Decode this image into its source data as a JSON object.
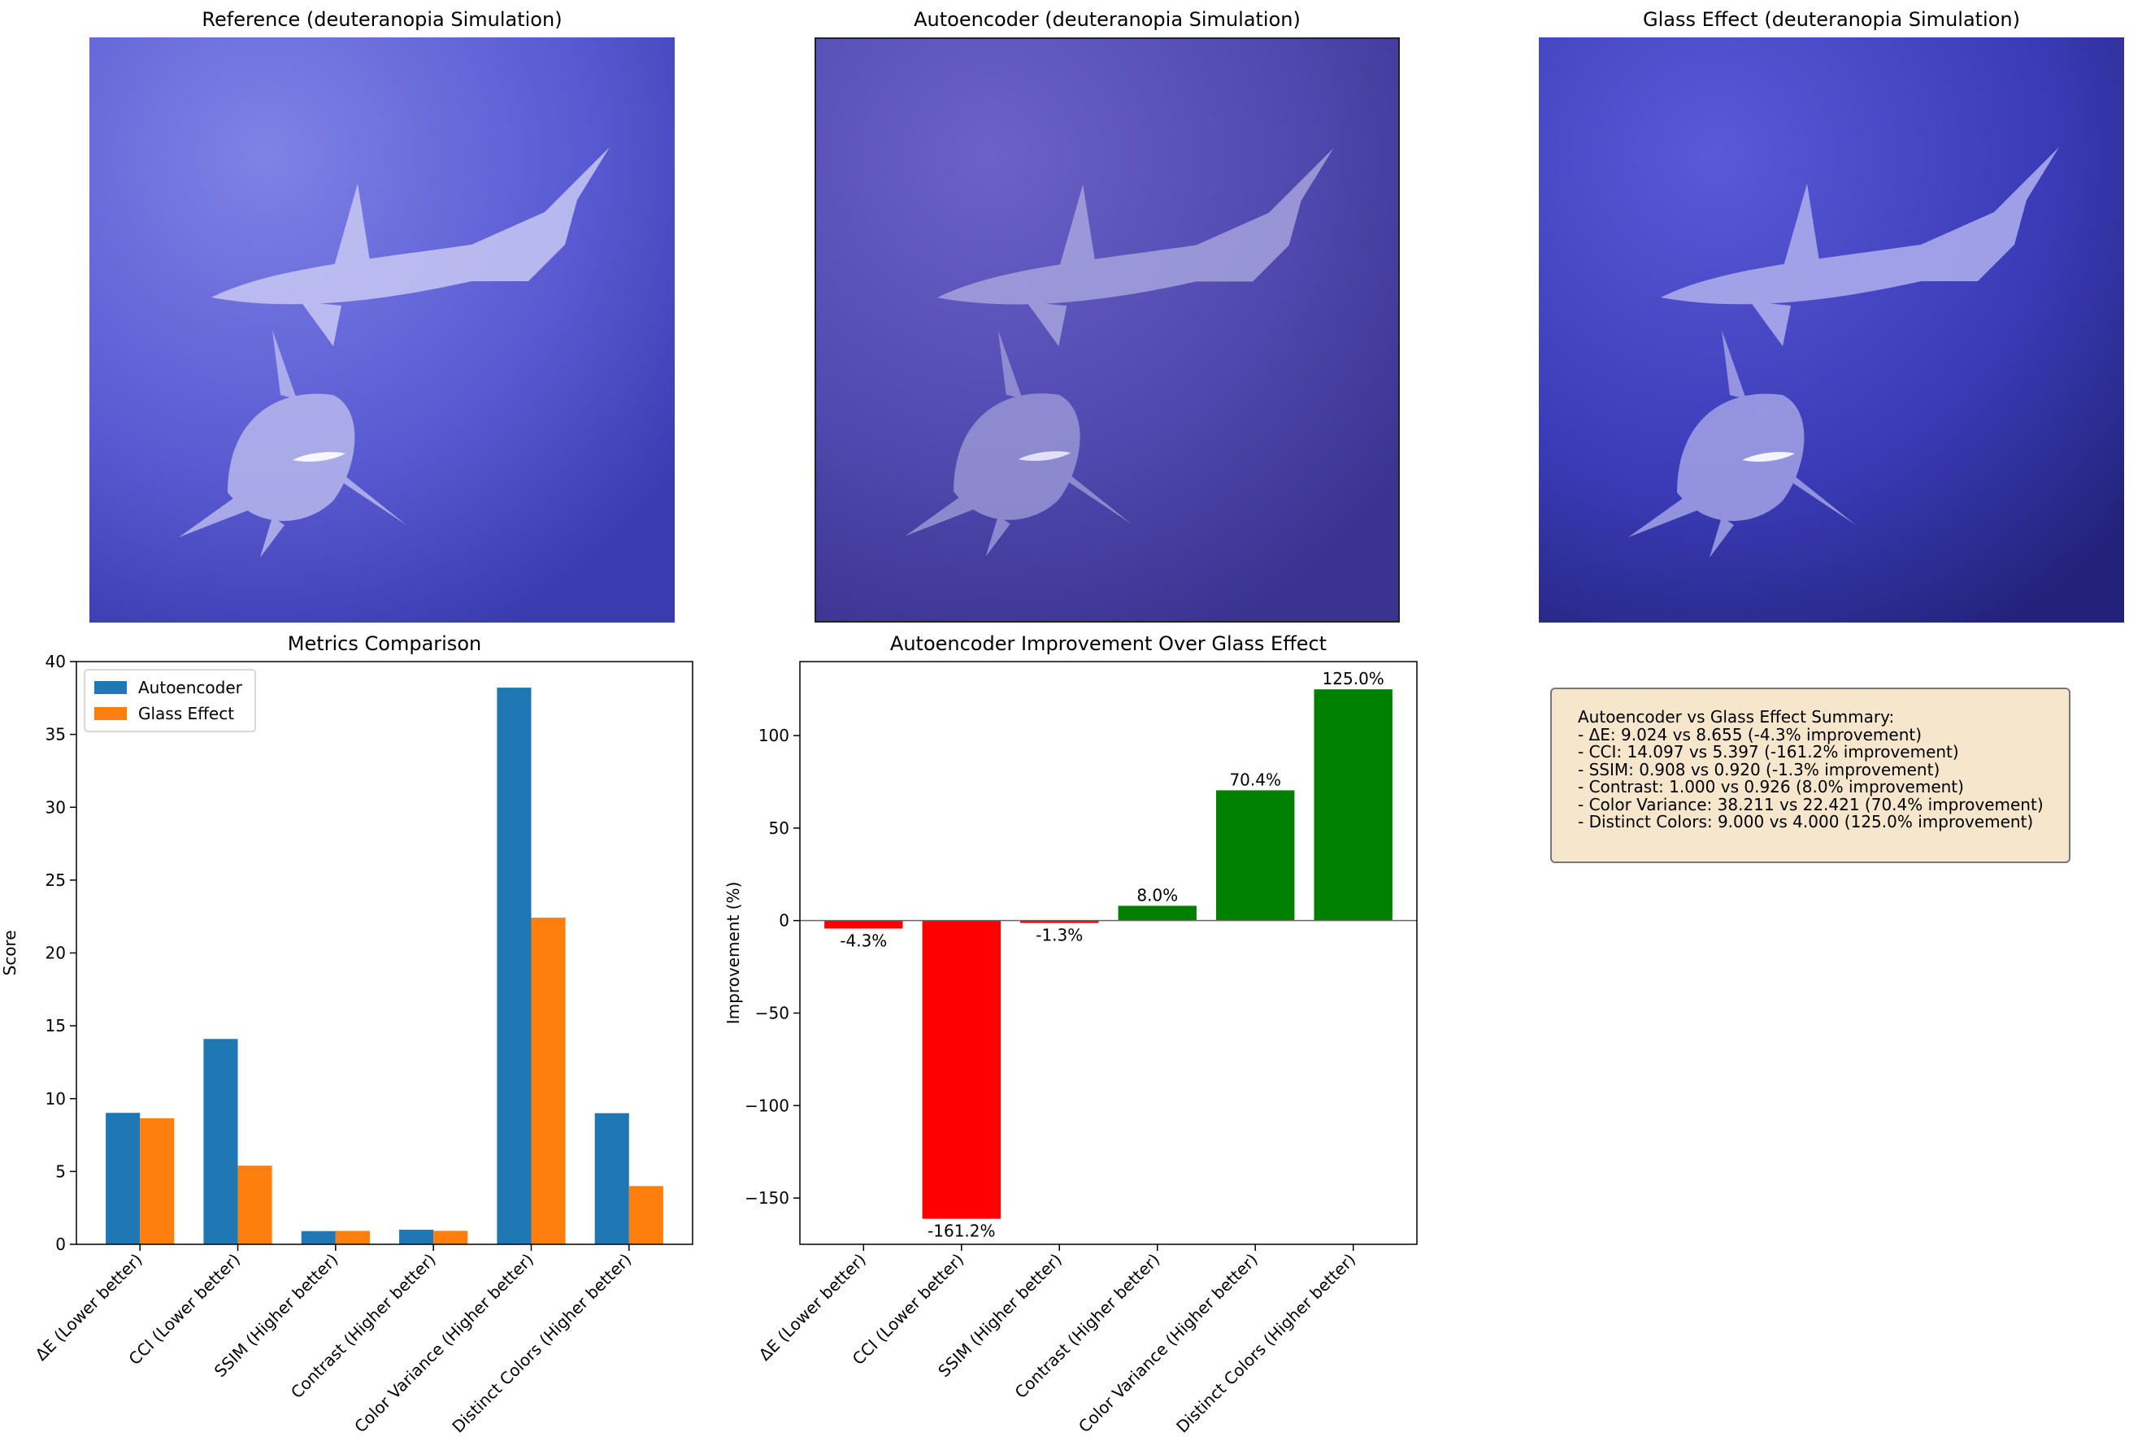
{
  "panels": {
    "reference_title": "Reference (deuteranopia Simulation)",
    "autoencoder_title": "Autoencoder (deuteranopia Simulation)",
    "glass_title": "Glass Effect (deuteranopia Simulation)"
  },
  "colors": {
    "autoencoder": "#1f77b4",
    "glass": "#ff7f0e",
    "positive": "#008000",
    "negative": "#ff0000",
    "summary_bg": "#f5e6cc"
  },
  "chart_data": [
    {
      "type": "bar",
      "title": "Metrics Comparison",
      "xlabel": "",
      "ylabel": "Score",
      "ylim": [
        0,
        40
      ],
      "yticks": [
        0,
        5,
        10,
        15,
        20,
        25,
        30,
        35,
        40
      ],
      "legend_position": "upper-left",
      "categories": [
        "ΔE (Lower better)",
        "CCI (Lower better)",
        "SSIM (Higher better)",
        "Contrast (Higher better)",
        "Color Variance (Higher better)",
        "Distinct Colors (Higher better)"
      ],
      "series": [
        {
          "name": "Autoencoder",
          "values": [
            9.024,
            14.097,
            0.908,
            1.0,
            38.211,
            9.0
          ]
        },
        {
          "name": "Glass Effect",
          "values": [
            8.655,
            5.397,
            0.92,
            0.926,
            22.421,
            4.0
          ]
        }
      ]
    },
    {
      "type": "bar",
      "title": "Autoencoder Improvement Over Glass Effect",
      "xlabel": "",
      "ylabel": "Improvement (%)",
      "ylim": [
        -175,
        140
      ],
      "yticks": [
        -150,
        -100,
        -50,
        0,
        50,
        100
      ],
      "categories": [
        "ΔE (Lower better)",
        "CCI (Lower better)",
        "SSIM (Higher better)",
        "Contrast (Higher better)",
        "Color Variance (Higher better)",
        "Distinct Colors (Higher better)"
      ],
      "values": [
        -4.3,
        -161.2,
        -1.3,
        8.0,
        70.4,
        125.0
      ],
      "labels": [
        "-4.3%",
        "-161.2%",
        "-1.3%",
        "8.0%",
        "70.4%",
        "125.0%"
      ]
    }
  ],
  "summary": {
    "lines": [
      "Autoencoder vs Glass Effect Summary:",
      "- ΔE: 9.024 vs 8.655 (-4.3% improvement)",
      "- CCI: 14.097 vs 5.397 (-161.2% improvement)",
      "- SSIM: 0.908 vs 0.920 (-1.3% improvement)",
      "- Contrast: 1.000 vs 0.926 (8.0% improvement)",
      "- Color Variance: 38.211 vs 22.421 (70.4% improvement)",
      "- Distinct Colors: 9.000 vs 4.000 (125.0% improvement)"
    ]
  }
}
